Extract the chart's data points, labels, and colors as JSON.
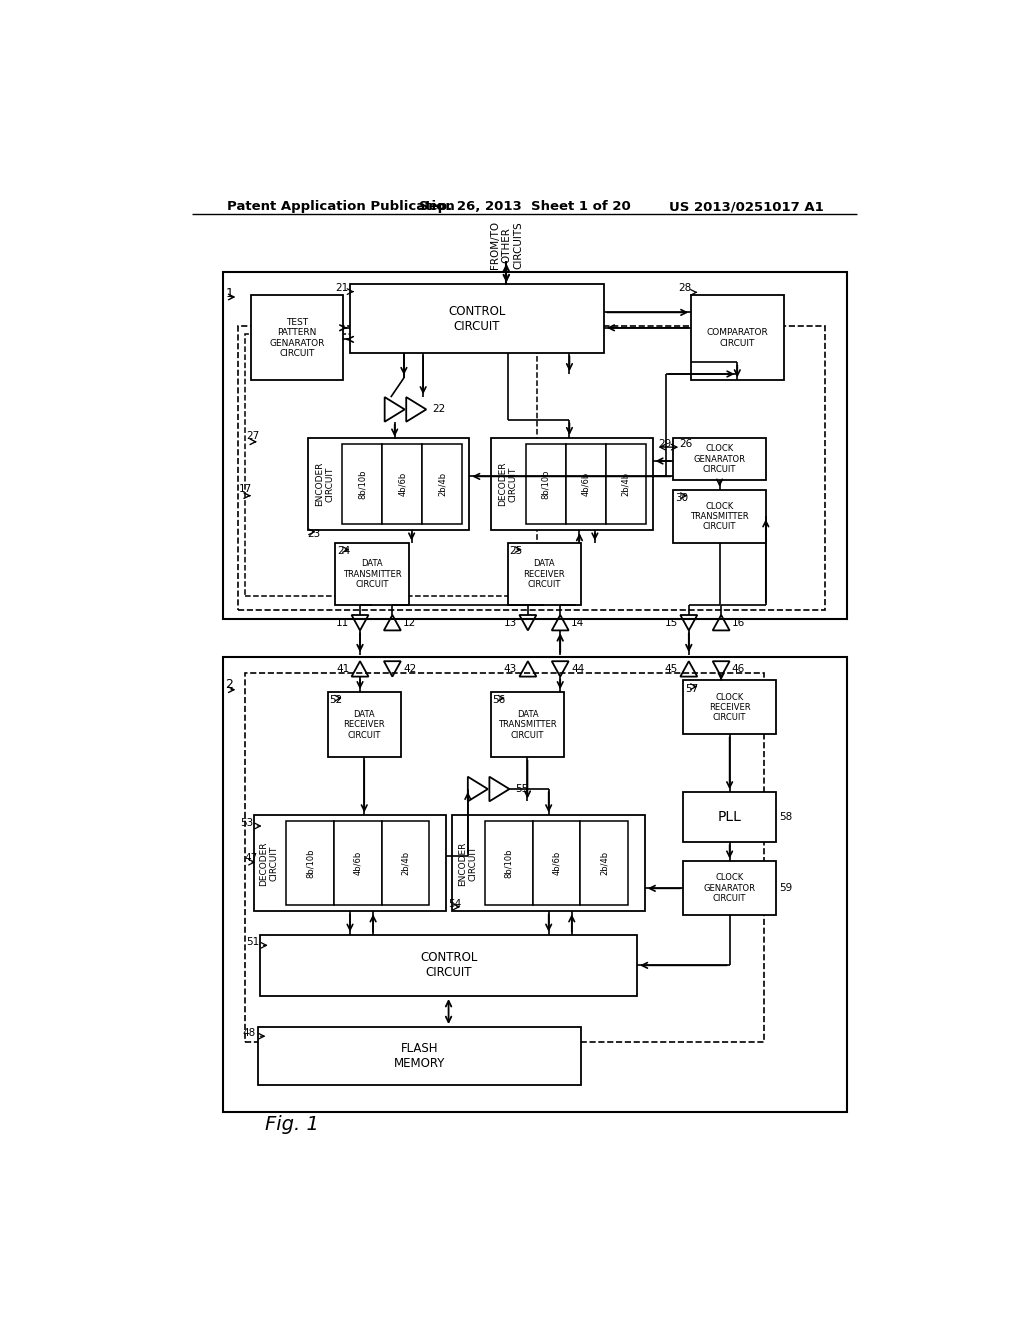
{
  "bg_color": "#ffffff",
  "header_left": "Patent Application Publication",
  "header_center": "Sep. 26, 2013  Sheet 1 of 20",
  "header_right": "US 2013/0251017 A1",
  "fig_label": "Fig. 1"
}
